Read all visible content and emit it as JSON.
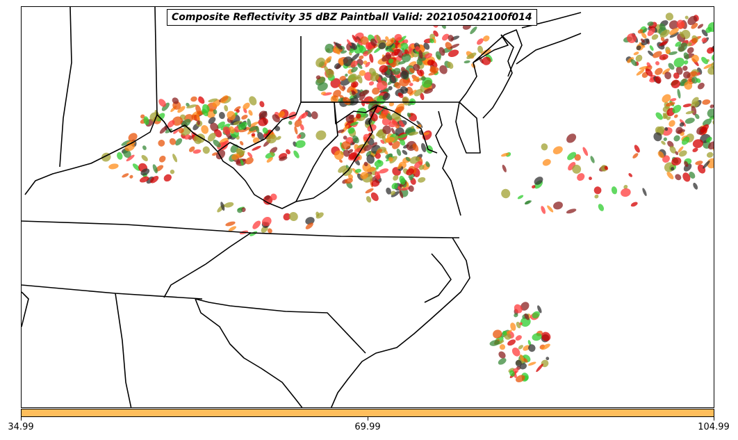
{
  "title": "Composite Reflectivity 35 dBZ Paintball Valid: 202105042100f014",
  "colorbar": {
    "color": "#ffbe5c",
    "ticks": [
      "34.99",
      "69.99",
      "104.99"
    ]
  },
  "member_colors": [
    "#d40000",
    "#ff3b3b",
    "#e8540a",
    "#ff8c1a",
    "#2ecc2e",
    "#3a8a3a",
    "#a0a030",
    "#333333",
    "#8b2020"
  ]
}
